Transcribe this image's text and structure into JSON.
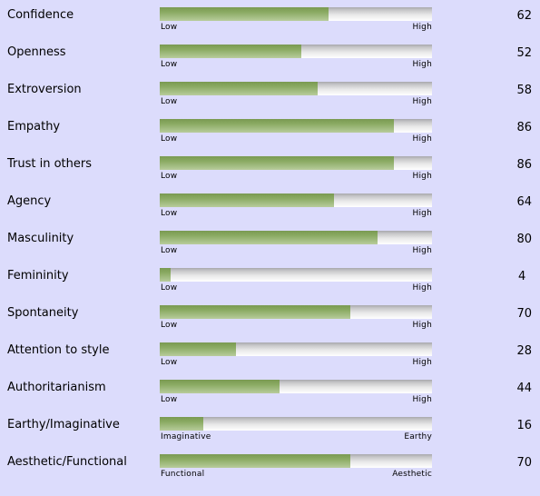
{
  "traits": [
    {
      "label": "Confidence",
      "value": 62,
      "low": "Low",
      "high": "High"
    },
    {
      "label": "Openness",
      "value": 52,
      "low": "Low",
      "high": "High"
    },
    {
      "label": "Extroversion",
      "value": 58,
      "low": "Low",
      "high": "High"
    },
    {
      "label": "Empathy",
      "value": 86,
      "low": "Low",
      "high": "High"
    },
    {
      "label": "Trust in others",
      "value": 86,
      "low": "Low",
      "high": "High"
    },
    {
      "label": "Agency",
      "value": 64,
      "low": "Low",
      "high": "High"
    },
    {
      "label": "Masculinity",
      "value": 80,
      "low": "Low",
      "high": "High"
    },
    {
      "label": "Femininity",
      "value": 4,
      "low": "Low",
      "high": "High"
    },
    {
      "label": "Spontaneity",
      "value": 70,
      "low": "Low",
      "high": "High"
    },
    {
      "label": "Attention to style",
      "value": 28,
      "low": "Low",
      "high": "High"
    },
    {
      "label": "Authoritarianism",
      "value": 44,
      "low": "Low",
      "high": "High"
    },
    {
      "label": "Earthy/Imaginative",
      "value": 16,
      "low": "Imaginative",
      "high": "Earthy"
    },
    {
      "label": "Aesthetic/Functional",
      "value": 70,
      "low": "Functional",
      "high": "Aesthetic"
    }
  ],
  "colors": {
    "background": "#dcdcfc",
    "bar_fill": "#8aaa62",
    "bar_track": "#e8e8e8"
  }
}
